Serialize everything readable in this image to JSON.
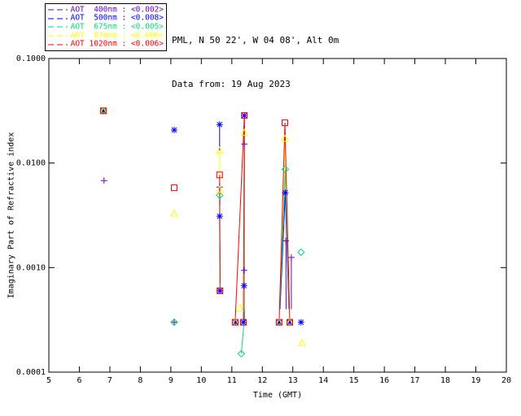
{
  "header": {
    "line1": "PML, N 50 22', W 04 08', Alt 0m",
    "line2": "Data from: 19 Aug 2023"
  },
  "chart_data": {
    "type": "line",
    "title": "",
    "xlabel": "Time (GMT)",
    "ylabel": "Imaginary Part of Refractive index",
    "xlim": [
      5,
      20
    ],
    "ylim": [
      0.0001,
      0.1
    ],
    "yscale": "log",
    "xticks": [
      5,
      6,
      7,
      8,
      9,
      10,
      11,
      12,
      13,
      14,
      15,
      16,
      17,
      18,
      19,
      20
    ],
    "yticks": [
      0.1,
      0.01,
      0.001,
      0.0001
    ],
    "ytick_labels": [
      "0.1000",
      "0.0100",
      "0.0010",
      "0.0001"
    ],
    "grid": false,
    "legend_position": "top-left",
    "series": [
      {
        "name": "AOT 400nm",
        "legend_label": "AOT  400nm : <0.002>",
        "threshold": "<0.002>",
        "color": "#7000c8",
        "marker": "plus",
        "markers": [
          [
            6.81,
            0.0068
          ],
          [
            9.11,
            0.0003
          ],
          [
            10.6,
            0.0059
          ],
          [
            10.61,
            0.0006
          ],
          [
            11.41,
            0.0152
          ],
          [
            11.4,
            0.00094
          ],
          [
            12.77,
            0.0018
          ],
          [
            12.95,
            0.00125
          ]
        ],
        "lines": [
          [
            [
              10.6,
              0.0059
            ],
            [
              10.61,
              0.004
            ]
          ],
          [
            [
              11.41,
              0.0152
            ],
            [
              11.41,
              0.00094
            ]
          ],
          [
            [
              12.77,
              0.0018
            ],
            [
              12.78,
              0.0004
            ]
          ],
          [
            [
              12.95,
              0.00125
            ],
            [
              12.95,
              0.0004
            ]
          ]
        ]
      },
      {
        "name": "AOT 500nm",
        "legend_label": "AOT  500nm : <0.008>",
        "threshold": "<0.008>",
        "color": "#0000ff",
        "marker": "asterisk",
        "markers": [
          [
            6.79,
            0.0316
          ],
          [
            9.11,
            0.0207
          ],
          [
            10.6,
            0.0234
          ],
          [
            10.6,
            0.0031
          ],
          [
            10.61,
            0.0006
          ],
          [
            11.41,
            0.0285
          ],
          [
            11.4,
            0.00067
          ],
          [
            11.12,
            0.0003
          ],
          [
            11.38,
            0.0003
          ],
          [
            12.55,
            0.0003
          ],
          [
            12.75,
            0.0052
          ],
          [
            12.9,
            0.0003
          ],
          [
            13.27,
            0.0003
          ]
        ],
        "lines": [
          [
            [
              10.6,
              0.0234
            ],
            [
              10.6,
              0.0132
            ]
          ],
          [
            [
              10.6,
              0.0031
            ],
            [
              10.61,
              0.0012
            ]
          ],
          [
            [
              11.41,
              0.0285
            ],
            [
              11.41,
              0.0003
            ]
          ],
          [
            [
              12.58,
              0.0004
            ],
            [
              12.75,
              0.0052
            ],
            [
              12.87,
              0.0004
            ]
          ]
        ]
      },
      {
        "name": "AOT 675nm",
        "legend_label": "AOT  675nm : <0.005>",
        "threshold": "<0.005>",
        "color": "#00dd7d",
        "marker": "diamond",
        "markers": [
          [
            6.79,
            0.0316
          ],
          [
            9.11,
            0.0003
          ],
          [
            10.6,
            0.0049
          ],
          [
            11.31,
            0.00015
          ],
          [
            12.75,
            0.0087
          ],
          [
            13.27,
            0.0014
          ]
        ],
        "lines": [
          [
            [
              10.6,
              0.0049
            ],
            [
              10.62,
              0.0007
            ]
          ],
          [
            [
              11.41,
              0.0196
            ],
            [
              11.4,
              0.0003
            ],
            [
              11.31,
              0.00015
            ]
          ],
          [
            [
              12.57,
              0.0004
            ],
            [
              12.75,
              0.0087
            ],
            [
              12.88,
              0.0004
            ]
          ]
        ]
      },
      {
        "name": "AOT 870nm",
        "legend_label": "AOT  870nm : <0.006>",
        "threshold": "<0.006>",
        "color": "#ffff00",
        "marker": "triangle",
        "markers": [
          [
            6.79,
            0.0316
          ],
          [
            9.11,
            0.0033
          ],
          [
            10.6,
            0.0132
          ],
          [
            10.61,
            0.0056
          ],
          [
            11.41,
            0.0196
          ],
          [
            11.27,
            0.00041
          ],
          [
            11.12,
            0.0003
          ],
          [
            12.74,
            0.0172
          ],
          [
            12.55,
            0.0003
          ],
          [
            12.9,
            0.0003
          ],
          [
            13.3,
            0.00019
          ]
        ],
        "lines": [
          [
            [
              10.6,
              0.0132
            ],
            [
              10.61,
              0.0056
            ]
          ],
          [
            [
              11.41,
              0.0196
            ],
            [
              11.4,
              0.0004
            ]
          ],
          [
            [
              12.56,
              0.0004
            ],
            [
              12.74,
              0.0172
            ],
            [
              12.89,
              0.0004
            ]
          ]
        ]
      },
      {
        "name": "AOT 1020nm",
        "legend_label": "AOT 1020nm : <0.006>",
        "threshold": "<0.006>",
        "color": "#ff0000",
        "marker": "square",
        "markers": [
          [
            6.79,
            0.0316
          ],
          [
            9.11,
            0.0058
          ],
          [
            10.6,
            0.0077
          ],
          [
            10.61,
            0.0006
          ],
          [
            11.41,
            0.0285
          ],
          [
            11.11,
            0.0003
          ],
          [
            11.38,
            0.0003
          ],
          [
            12.74,
            0.0243
          ],
          [
            12.55,
            0.0003
          ],
          [
            12.9,
            0.0003
          ]
        ],
        "lines": [
          [
            [
              10.6,
              0.0077
            ],
            [
              10.61,
              0.0006
            ]
          ],
          [
            [
              11.11,
              0.0003
            ],
            [
              11.41,
              0.0285
            ],
            [
              11.38,
              0.0003
            ]
          ],
          [
            [
              12.55,
              0.0003
            ],
            [
              12.74,
              0.0243
            ],
            [
              12.9,
              0.0003
            ]
          ]
        ]
      }
    ]
  }
}
